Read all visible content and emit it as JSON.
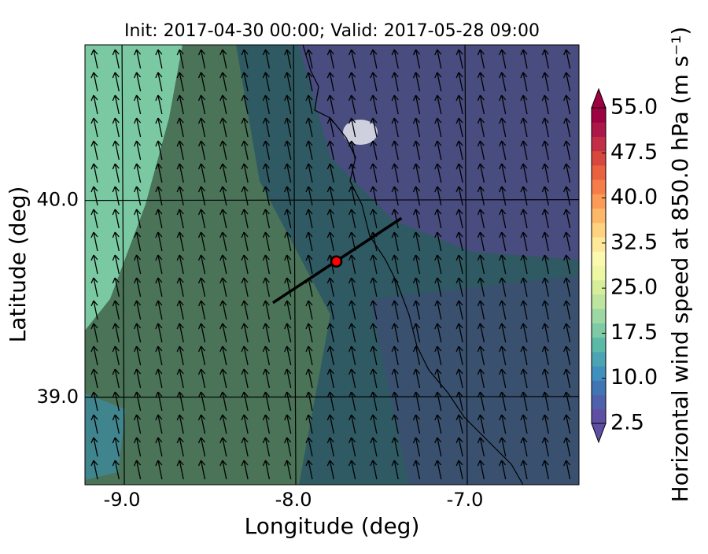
{
  "chart_data": {
    "type": "map",
    "title": "Init: 2017-04-30 00:00; Valid: 2017-05-28 09:00",
    "x_label": "Longitude (deg)",
    "y_label": "Latitude (deg)",
    "xlim": [
      -9.216,
      -6.335
    ],
    "ylim": [
      38.556,
      40.79
    ],
    "xticks": [
      {
        "value": -9,
        "label": "-9.0"
      },
      {
        "value": -8,
        "label": "-8.0"
      },
      {
        "value": -7,
        "label": "-7.0"
      }
    ],
    "yticks": [
      {
        "value": 39,
        "label": "39.0"
      },
      {
        "value": 40,
        "label": "40.0"
      }
    ],
    "grid": true,
    "marker": {
      "x": -7.75,
      "y": 39.69,
      "color": "#ff0000"
    },
    "cross_section": {
      "x": [
        -8.12,
        -7.37
      ],
      "y": [
        39.48,
        39.91
      ]
    },
    "colorbar": {
      "label": "Horizontal wind speed at 850.0 hPa (m s⁻¹)",
      "clim": [
        2.5,
        55
      ],
      "ticks": [
        {
          "value": 2.5,
          "label": "2.5"
        },
        {
          "value": 10,
          "label": "10.0"
        },
        {
          "value": 17.5,
          "label": "17.5"
        },
        {
          "value": 25,
          "label": "25.0"
        },
        {
          "value": 32.5,
          "label": "32.5"
        },
        {
          "value": 40,
          "label": "40.0"
        },
        {
          "value": 47.5,
          "label": "47.5"
        },
        {
          "value": 55,
          "label": "55.0"
        }
      ],
      "colors": [
        "#5e4fa2",
        "#4f61aa",
        "#4075b4",
        "#3f8fbf",
        "#4ba4b1",
        "#5db9a7",
        "#7dcaa4",
        "#9dd7a4",
        "#bde5a0",
        "#d6ee9b",
        "#eef8a4",
        "#fbf8b0",
        "#fee89a",
        "#fed27f",
        "#fdb768",
        "#fb9b57",
        "#f67d4a",
        "#e9613e",
        "#d8473d",
        "#c32e47",
        "#ad1648",
        "#9e0142"
      ]
    }
  }
}
